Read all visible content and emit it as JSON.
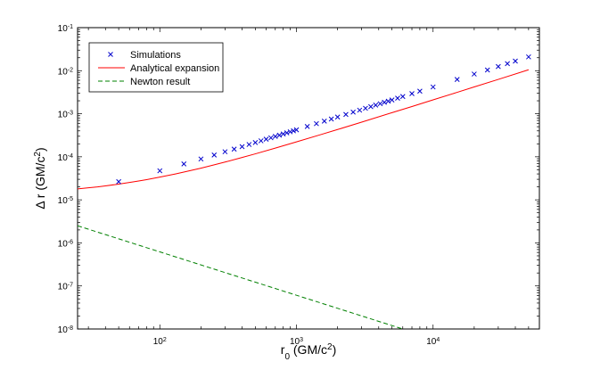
{
  "chart_data": {
    "type": "line",
    "xscale": "log",
    "yscale": "log",
    "xlim": [
      25,
      60000
    ],
    "ylim": [
      1e-08,
      0.1
    ],
    "xlabel": "r_0 (GM/c^2)",
    "ylabel": "Δ r (GM/c^2)",
    "x_ticks": [
      {
        "value": 100,
        "base": "10",
        "exp": "2"
      },
      {
        "value": 1000,
        "base": "10",
        "exp": "3"
      },
      {
        "value": 10000,
        "base": "10",
        "exp": "4"
      }
    ],
    "y_ticks": [
      {
        "value": 1e-08,
        "base": "10",
        "exp": "-8"
      },
      {
        "value": 1e-07,
        "base": "10",
        "exp": "-7"
      },
      {
        "value": 1e-06,
        "base": "10",
        "exp": "-6"
      },
      {
        "value": 1e-05,
        "base": "10",
        "exp": "-5"
      },
      {
        "value": 0.0001,
        "base": "10",
        "exp": "-4"
      },
      {
        "value": 0.001,
        "base": "10",
        "exp": "-3"
      },
      {
        "value": 0.01,
        "base": "10",
        "exp": "-2"
      },
      {
        "value": 0.1,
        "base": "10",
        "exp": "-1"
      }
    ],
    "grid": false,
    "legend_position": "top-left",
    "series": [
      {
        "name": "Simulations",
        "style": "marker-x",
        "color": "#0000cc",
        "x": [
          50,
          100,
          150,
          200,
          250,
          300,
          350,
          400,
          450,
          500,
          550,
          600,
          650,
          700,
          750,
          800,
          850,
          900,
          950,
          1000,
          1200,
          1400,
          1600,
          1800,
          2000,
          2300,
          2600,
          2900,
          3200,
          3500,
          3800,
          4100,
          4400,
          4700,
          5000,
          5500,
          6000,
          7000,
          8000,
          10000,
          15000,
          20000,
          25000,
          30000,
          35000,
          40000,
          50000
        ],
        "y": [
          2.64e-05,
          4.73e-05,
          6.81e-05,
          8.89e-05,
          0.00011,
          0.000131,
          0.000151,
          0.000172,
          0.000193,
          0.000214,
          0.000235,
          0.000256,
          0.000276,
          0.000297,
          0.000318,
          0.000339,
          0.00036,
          0.000381,
          0.000401,
          0.000422,
          0.000505,
          0.000589,
          0.000672,
          0.000755,
          0.000839,
          0.000964,
          0.00109,
          0.00121,
          0.00134,
          0.00146,
          0.00159,
          0.00171,
          0.00184,
          0.00196,
          0.00209,
          0.0023,
          0.00251,
          0.00293,
          0.00334,
          0.00418,
          0.00626,
          0.00835,
          0.0104,
          0.0125,
          0.0146,
          0.0167,
          0.0209
        ]
      },
      {
        "name": "Analytical expansion",
        "style": "solid",
        "color": "#ff0000",
        "x": [
          25,
          30,
          35,
          40,
          50,
          60,
          70,
          80,
          100,
          130,
          160,
          200,
          250,
          300,
          400,
          500,
          700,
          1000,
          1500,
          2000,
          3000,
          5000,
          7000,
          10000,
          15000,
          20000,
          30000,
          50000
        ],
        "y": [
          1.8e-05,
          1.9e-05,
          2e-05,
          2.11e-05,
          2.32e-05,
          2.53e-05,
          2.74e-05,
          2.95e-05,
          3.37e-05,
          3.99e-05,
          4.62e-05,
          5.45e-05,
          6.5e-05,
          7.54e-05,
          9.63e-05,
          0.000117,
          0.000159,
          0.000222,
          0.000326,
          0.00043,
          0.000639,
          0.00106,
          0.00147,
          0.0021,
          0.00314,
          0.00419,
          0.00627,
          0.0105
        ]
      },
      {
        "name": "Newton result",
        "style": "dashed",
        "color": "#008000",
        "x": [
          25,
          6000
        ],
        "y": [
          2.5e-06,
          1e-08
        ]
      }
    ]
  }
}
